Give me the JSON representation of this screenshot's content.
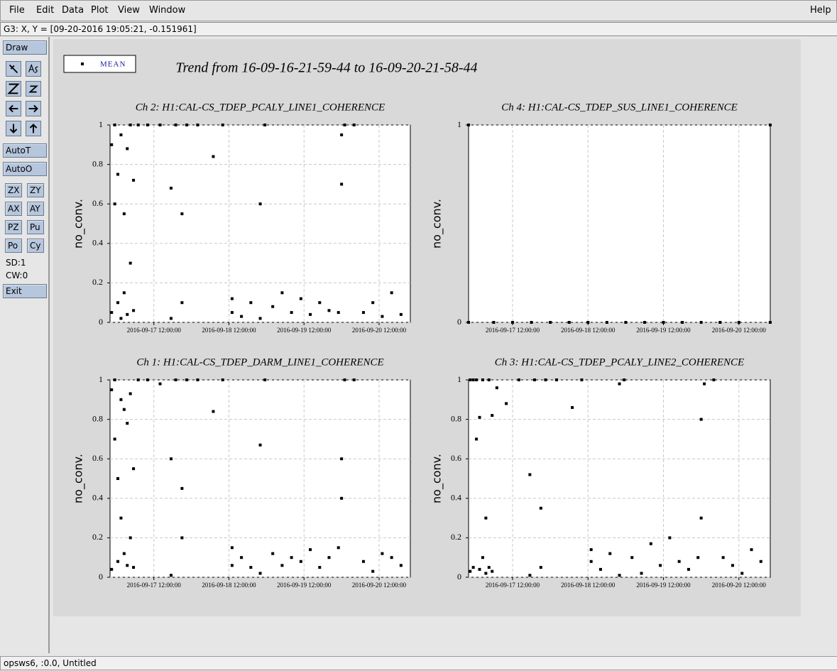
{
  "menu": {
    "items": [
      "File",
      "Edit",
      "Data",
      "Plot",
      "View",
      "Window"
    ],
    "help": "Help"
  },
  "status": "G3: X, Y = [09-20-2016 19:05:21, -0.151961]",
  "toolbar": {
    "draw": "Draw",
    "buttons": [
      "AutoT",
      "AutoO"
    ],
    "pairs": [
      [
        "ZX",
        "ZY"
      ],
      [
        "AX",
        "AY"
      ],
      [
        "PZ",
        "Pu"
      ],
      [
        "Po",
        "Cy"
      ]
    ],
    "sd": "SD:1",
    "cw": "CW:0",
    "exit": "Exit"
  },
  "footer": "opsws6, :0.0, Untitled",
  "header": {
    "legend": "MEAN",
    "title": "Trend from 16-09-16-21-59-44 to 16-09-20-21-58-44"
  },
  "chart_data": [
    {
      "type": "scatter",
      "title": "Ch 2: H1:CAL-CS_TDEP_PCALY_LINE1_COHERENCE",
      "ylabel": "no_conv.",
      "color": "#000000",
      "grid": true,
      "xlim": [
        "2016-09-16 21:59:44",
        "2016-09-20 21:58:44"
      ],
      "xticks": [
        "2016-09-17 12:00:00",
        "2016-09-18 12:00:00",
        "2016-09-19 12:00:00",
        "2016-09-20 12:00:00"
      ],
      "ylim": [
        0,
        1
      ],
      "yticks": [
        0,
        0.2,
        0.4,
        0.6,
        0.8,
        1
      ],
      "x": [
        "2016-09-16 22:30:00",
        "2016-09-16 22:30:00",
        "2016-09-16 23:30:00",
        "2016-09-16 23:30:00",
        "2016-09-17 00:30:00",
        "2016-09-17 00:30:00",
        "2016-09-17 01:30:00",
        "2016-09-17 01:30:00",
        "2016-09-17 02:30:00",
        "2016-09-17 02:30:00",
        "2016-09-17 03:30:00",
        "2016-09-17 03:30:00",
        "2016-09-17 04:30:00",
        "2016-09-17 04:30:00",
        "2016-09-17 05:30:00",
        "2016-09-17 05:30:00",
        "2016-09-17 07:00:00",
        "2016-09-17 10:00:00",
        "2016-09-17 14:00:00",
        "2016-09-17 17:30:00",
        "2016-09-17 17:30:00",
        "2016-09-17 19:00:00",
        "2016-09-17 21:00:00",
        "2016-09-17 21:00:00",
        "2016-09-17 22:30:00",
        "2016-09-18 02:00:00",
        "2016-09-18 07:00:00",
        "2016-09-18 10:00:00",
        "2016-09-18 13:00:00",
        "2016-09-18 13:00:00",
        "2016-09-18 16:00:00",
        "2016-09-18 19:00:00",
        "2016-09-18 22:00:00",
        "2016-09-18 22:00:00",
        "2016-09-18 23:30:00",
        "2016-09-19 02:00:00",
        "2016-09-19 05:00:00",
        "2016-09-19 08:00:00",
        "2016-09-19 11:00:00",
        "2016-09-19 14:00:00",
        "2016-09-19 17:00:00",
        "2016-09-19 20:00:00",
        "2016-09-19 23:00:00",
        "2016-09-20 00:00:00",
        "2016-09-20 00:00:00",
        "2016-09-20 01:00:00",
        "2016-09-20 04:00:00",
        "2016-09-20 07:00:00",
        "2016-09-20 10:00:00",
        "2016-09-20 13:00:00",
        "2016-09-20 16:00:00",
        "2016-09-20 19:00:00"
      ],
      "values": [
        0.05,
        0.9,
        0.6,
        1,
        0.1,
        0.75,
        0.02,
        0.95,
        0.15,
        0.55,
        0.04,
        0.88,
        0.3,
        1,
        0.06,
        0.72,
        1,
        1,
        1,
        0.02,
        0.68,
        1,
        0.1,
        0.55,
        1,
        1,
        0.84,
        1,
        0.05,
        0.12,
        0.03,
        0.1,
        0.02,
        0.6,
        1,
        0.08,
        0.15,
        0.05,
        0.12,
        0.04,
        0.1,
        0.06,
        0.05,
        0.7,
        0.95,
        1,
        1,
        0.05,
        0.1,
        0.03,
        0.15,
        0.04
      ]
    },
    {
      "type": "scatter",
      "title": "Ch 4: H1:CAL-CS_TDEP_SUS_LINE1_COHERENCE",
      "ylabel": "no_conv.",
      "color": "#000000",
      "grid": true,
      "xlim": [
        "2016-09-16 21:59:44",
        "2016-09-20 21:58:44"
      ],
      "xticks": [
        "2016-09-17 12:00:00",
        "2016-09-18 12:00:00",
        "2016-09-19 12:00:00",
        "2016-09-20 12:00:00"
      ],
      "ylim": [
        0,
        1
      ],
      "yticks": [
        0,
        1
      ],
      "x": [
        "2016-09-16 22:00:00",
        "2016-09-16 22:00:00",
        "2016-09-17 06:00:00",
        "2016-09-17 12:00:00",
        "2016-09-17 18:00:00",
        "2016-09-18 00:00:00",
        "2016-09-18 06:00:00",
        "2016-09-18 12:00:00",
        "2016-09-18 18:00:00",
        "2016-09-19 00:00:00",
        "2016-09-19 06:00:00",
        "2016-09-19 12:00:00",
        "2016-09-19 18:00:00",
        "2016-09-20 00:00:00",
        "2016-09-20 06:00:00",
        "2016-09-20 12:00:00",
        "2016-09-20 21:58:00",
        "2016-09-20 21:58:00"
      ],
      "values": [
        1,
        0,
        0,
        0,
        0,
        0,
        0,
        0,
        0,
        0,
        0,
        0,
        0,
        0,
        0,
        0,
        0,
        1
      ]
    },
    {
      "type": "scatter",
      "title": "Ch 1: H1:CAL-CS_TDEP_DARM_LINE1_COHERENCE",
      "ylabel": "no_conv.",
      "color": "#000000",
      "grid": true,
      "xlim": [
        "2016-09-16 21:59:44",
        "2016-09-20 21:58:44"
      ],
      "xticks": [
        "2016-09-17 12:00:00",
        "2016-09-18 12:00:00",
        "2016-09-19 12:00:00",
        "2016-09-20 12:00:00"
      ],
      "ylim": [
        0,
        1
      ],
      "yticks": [
        0,
        0.2,
        0.4,
        0.6,
        0.8,
        1
      ],
      "x": [
        "2016-09-16 22:30:00",
        "2016-09-16 22:30:00",
        "2016-09-16 23:30:00",
        "2016-09-16 23:30:00",
        "2016-09-17 00:30:00",
        "2016-09-17 00:30:00",
        "2016-09-17 01:30:00",
        "2016-09-17 01:30:00",
        "2016-09-17 02:30:00",
        "2016-09-17 02:30:00",
        "2016-09-17 03:30:00",
        "2016-09-17 03:30:00",
        "2016-09-17 04:30:00",
        "2016-09-17 04:30:00",
        "2016-09-17 05:30:00",
        "2016-09-17 05:30:00",
        "2016-09-17 07:00:00",
        "2016-09-17 10:00:00",
        "2016-09-17 14:00:00",
        "2016-09-17 17:30:00",
        "2016-09-17 17:30:00",
        "2016-09-17 19:00:00",
        "2016-09-17 21:00:00",
        "2016-09-17 21:00:00",
        "2016-09-17 22:30:00",
        "2016-09-18 02:00:00",
        "2016-09-18 07:00:00",
        "2016-09-18 10:00:00",
        "2016-09-18 13:00:00",
        "2016-09-18 13:00:00",
        "2016-09-18 16:00:00",
        "2016-09-18 19:00:00",
        "2016-09-18 22:00:00",
        "2016-09-18 22:00:00",
        "2016-09-18 23:30:00",
        "2016-09-19 02:00:00",
        "2016-09-19 05:00:00",
        "2016-09-19 08:00:00",
        "2016-09-19 11:00:00",
        "2016-09-19 14:00:00",
        "2016-09-19 17:00:00",
        "2016-09-19 20:00:00",
        "2016-09-19 23:00:00",
        "2016-09-20 00:00:00",
        "2016-09-20 00:00:00",
        "2016-09-20 01:00:00",
        "2016-09-20 04:00:00",
        "2016-09-20 07:00:00",
        "2016-09-20 10:00:00",
        "2016-09-20 13:00:00",
        "2016-09-20 16:00:00",
        "2016-09-20 19:00:00"
      ],
      "values": [
        0.04,
        0.95,
        0.7,
        1,
        0.08,
        0.5,
        0.3,
        0.9,
        0.12,
        0.85,
        0.06,
        0.78,
        0.2,
        0.93,
        0.05,
        0.55,
        1,
        1,
        0.98,
        0.01,
        0.6,
        1,
        0.2,
        0.45,
        1,
        1,
        0.84,
        1,
        0.06,
        0.15,
        0.1,
        0.05,
        0.02,
        0.67,
        1,
        0.12,
        0.06,
        0.1,
        0.08,
        0.14,
        0.05,
        0.1,
        0.15,
        0.6,
        0.4,
        1,
        1,
        0.08,
        0.03,
        0.12,
        0.1,
        0.06
      ]
    },
    {
      "type": "scatter",
      "title": "Ch 3: H1:CAL-CS_TDEP_PCALY_LINE2_COHERENCE",
      "ylabel": "no_conv.",
      "color": "#000000",
      "grid": true,
      "xlim": [
        "2016-09-16 21:59:44",
        "2016-09-20 21:58:44"
      ],
      "xticks": [
        "2016-09-17 12:00:00",
        "2016-09-18 12:00:00",
        "2016-09-19 12:00:00",
        "2016-09-20 12:00:00"
      ],
      "ylim": [
        0,
        1
      ],
      "yticks": [
        0,
        0.2,
        0.4,
        0.6,
        0.8,
        1
      ],
      "x": [
        "2016-09-16 22:30:00",
        "2016-09-16 22:30:00",
        "2016-09-16 23:30:00",
        "2016-09-16 23:30:00",
        "2016-09-17 00:30:00",
        "2016-09-17 00:30:00",
        "2016-09-17 01:30:00",
        "2016-09-17 01:30:00",
        "2016-09-17 02:30:00",
        "2016-09-17 02:30:00",
        "2016-09-17 03:30:00",
        "2016-09-17 03:30:00",
        "2016-09-17 04:30:00",
        "2016-09-17 04:30:00",
        "2016-09-17 05:30:00",
        "2016-09-17 05:30:00",
        "2016-09-17 07:00:00",
        "2016-09-17 10:00:00",
        "2016-09-17 14:00:00",
        "2016-09-17 17:30:00",
        "2016-09-17 17:30:00",
        "2016-09-17 19:00:00",
        "2016-09-17 21:00:00",
        "2016-09-17 21:00:00",
        "2016-09-17 22:30:00",
        "2016-09-18 02:00:00",
        "2016-09-18 07:00:00",
        "2016-09-18 10:00:00",
        "2016-09-18 13:00:00",
        "2016-09-18 13:00:00",
        "2016-09-18 16:00:00",
        "2016-09-18 19:00:00",
        "2016-09-18 22:00:00",
        "2016-09-18 22:00:00",
        "2016-09-18 23:30:00",
        "2016-09-19 02:00:00",
        "2016-09-19 05:00:00",
        "2016-09-19 08:00:00",
        "2016-09-19 11:00:00",
        "2016-09-19 14:00:00",
        "2016-09-19 17:00:00",
        "2016-09-19 20:00:00",
        "2016-09-19 23:00:00",
        "2016-09-20 00:00:00",
        "2016-09-20 00:00:00",
        "2016-09-20 01:00:00",
        "2016-09-20 04:00:00",
        "2016-09-20 07:00:00",
        "2016-09-20 10:00:00",
        "2016-09-20 13:00:00",
        "2016-09-20 16:00:00",
        "2016-09-20 19:00:00"
      ],
      "values": [
        0.03,
        1,
        0.05,
        1,
        0.7,
        1,
        0.04,
        0.81,
        0.1,
        1,
        0.02,
        0.3,
        0.05,
        1,
        0.03,
        0.82,
        0.96,
        0.88,
        1,
        0.01,
        0.52,
        1,
        0.05,
        0.35,
        1,
        1,
        0.86,
        1,
        0.08,
        0.14,
        0.04,
        0.12,
        0.01,
        0.98,
        1,
        0.1,
        0.02,
        0.17,
        0.06,
        0.2,
        0.08,
        0.04,
        0.1,
        0.3,
        0.8,
        0.98,
        1,
        0.1,
        0.06,
        0.02,
        0.14,
        0.08
      ]
    }
  ]
}
